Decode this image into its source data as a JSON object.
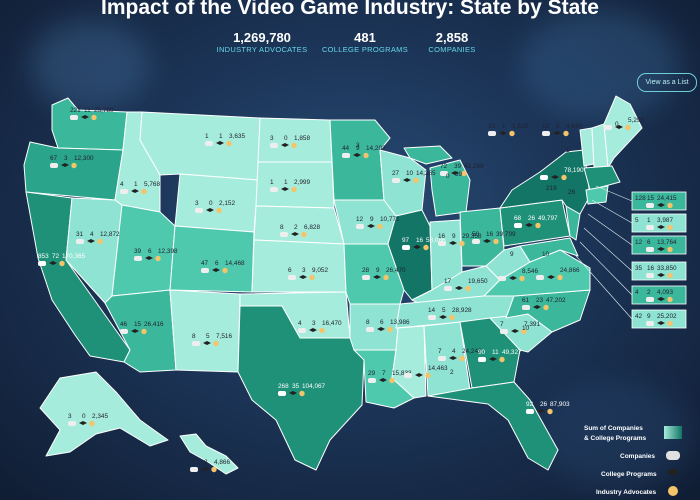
{
  "header": {
    "title": "Impact of the Video Game Industry: State by State"
  },
  "stats": [
    {
      "value": "1,269,780",
      "label": "INDUSTRY ADVOCATES"
    },
    {
      "value": "481",
      "label": "COLLEGE PROGRAMS"
    },
    {
      "value": "2,858",
      "label": "COMPANIES"
    }
  ],
  "view_list_label": "View as a List",
  "colors": {
    "light": "#a6ecdc",
    "light2": "#8fe3d2",
    "mid": "#4fc9ae",
    "mid2": "#3bb79c",
    "dark": "#1f9179",
    "darkest": "#127565",
    "accent": "#65d8e8"
  },
  "states": {
    "WA": {
      "companies": "221",
      "programs": "11",
      "advocates": "25,780"
    },
    "OR": {
      "companies": "67",
      "programs": "3",
      "advocates": "12,300"
    },
    "CA": {
      "companies": "853",
      "programs": "72",
      "advocates": "170,365"
    },
    "NV": {
      "companies": "31",
      "programs": "4",
      "advocates": "12,872"
    },
    "ID": {
      "companies": "4",
      "programs": "1",
      "advocates": "5,768"
    },
    "MT": {
      "companies": "1",
      "programs": "1",
      "advocates": "3,635"
    },
    "WY": {
      "companies": "3",
      "programs": "0",
      "advocates": "2,152"
    },
    "UT": {
      "companies": "39",
      "programs": "6",
      "advocates": "12,398"
    },
    "CO": {
      "companies": "47",
      "programs": "6",
      "advocates": "14,468"
    },
    "AZ": {
      "companies": "46",
      "programs": "15",
      "advocates": "26,416"
    },
    "NM": {
      "companies": "8",
      "programs": "5",
      "advocates": "7,516"
    },
    "ND": {
      "companies": "3",
      "programs": "0",
      "advocates": "1,858"
    },
    "SD": {
      "companies": "1",
      "programs": "1",
      "advocates": "2,999"
    },
    "NE": {
      "companies": "8",
      "programs": "2",
      "advocates": "6,828"
    },
    "KS": {
      "companies": "6",
      "programs": "3",
      "advocates": "9,052"
    },
    "OK": {
      "companies": "4",
      "programs": "3",
      "advocates": "16,470"
    },
    "TX": {
      "companies": "268",
      "programs": "35",
      "advocates": "104,067"
    },
    "MN": {
      "companies": "44",
      "programs": "9",
      "advocates": "14,202"
    },
    "IA": {
      "companies": "12",
      "programs": "9",
      "advocates": "10,771"
    },
    "MO": {
      "companies": "28",
      "programs": "9",
      "advocates": "26,470"
    },
    "AR": {
      "companies": "8",
      "programs": "6",
      "advocates": "13,986"
    },
    "LA": {
      "companies": "29",
      "programs": "7",
      "advocates": "15,833"
    },
    "WI": {
      "companies": "27",
      "programs": "10",
      "advocates": "14,265"
    },
    "IL": {
      "companies": "97",
      "programs": "16",
      "advocates": "58,086"
    },
    "MI": {
      "companies": "72",
      "programs": "39",
      "advocates": "42,269"
    },
    "IN": {
      "companies": "16",
      "programs": "9",
      "advocates": "29,358"
    },
    "OH": {
      "companies": "50",
      "programs": "16",
      "advocates": "39,799"
    },
    "KY": {
      "companies": "17",
      "programs": "",
      "advocates": "19,650"
    },
    "TN": {
      "companies": "14",
      "programs": "5",
      "advocates": "28,928"
    },
    "MS": {
      "companies": "",
      "programs": "",
      "advocates": "14,463"
    },
    "AL": {
      "companies": "7",
      "programs": "4",
      "advocates": "24,243"
    },
    "GA": {
      "companies": "90",
      "programs": "11",
      "advocates": "49,327"
    },
    "FL": {
      "companies": "92",
      "programs": "26",
      "advocates": "87,903"
    },
    "SC": {
      "companies": "7",
      "programs": "",
      "advocates": "7,391"
    },
    "NC": {
      "companies": "61",
      "programs": "23",
      "advocates": "47,202"
    },
    "VA": {
      "companies": "",
      "programs": "",
      "advocates": "24,866"
    },
    "WV": {
      "companies": "",
      "programs": "",
      "advocates": "8,546"
    },
    "PA": {
      "companies": "68",
      "programs": "26",
      "advocates": "49,797"
    },
    "NY": {
      "companies": "",
      "programs": "",
      "advocates": "78,190"
    },
    "VT": {
      "companies": "10",
      "programs": "1",
      "advocates": "1,629"
    },
    "NH": {
      "companies": "12",
      "programs": "5",
      "advocates": "4,640"
    },
    "ME": {
      "companies": "",
      "programs": "",
      "advocates": "5,298"
    },
    "AK": {
      "companies": "3",
      "programs": "0",
      "advocates": "2,345"
    },
    "HI": {
      "companies": "7",
      "programs": "2",
      "advocates": "4,866"
    }
  },
  "callouts": [
    {
      "companies": "128",
      "programs": "15",
      "advocates": "24,415"
    },
    {
      "companies": "5",
      "programs": "1",
      "advocates": "3,987"
    },
    {
      "companies": "12",
      "programs": "6",
      "advocates": "13,764"
    },
    {
      "companies": "35",
      "programs": "16",
      "advocates": "33,850"
    },
    {
      "companies": "4",
      "programs": "2",
      "advocates": "4,093"
    },
    {
      "companies": "42",
      "programs": "9",
      "advocates": "25,202"
    }
  ],
  "small_labels": {
    "mi_top": "39",
    "ny_small": "219",
    "ny_small2": "26",
    "ky_small": "9",
    "sc_small": "10",
    "ma_small": "0",
    "va_small": "10",
    "wi_small": "0",
    "mn_small": "3",
    "ny_top": "1",
    "misc_a": "2"
  },
  "legend": {
    "sum_label": "Sum of Companies",
    "sum_label2": "& College Programs",
    "companies_label": "Companies",
    "programs_label": "College Programs",
    "advocates_label": "Industry Advocates"
  }
}
